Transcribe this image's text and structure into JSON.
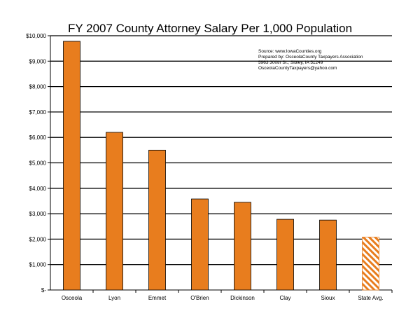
{
  "chart_data": {
    "type": "bar",
    "title": "FY 2007 County Attorney Salary Per 1,000 Population",
    "xlabel": "",
    "ylabel": "",
    "categories": [
      "Osceola",
      "Lyon",
      "Emmet",
      "O'Brien",
      "Dickinson",
      "Clay",
      "Sioux",
      "State Avg."
    ],
    "values": [
      9780,
      6200,
      5500,
      3580,
      3450,
      2780,
      2750,
      2080
    ],
    "ylim": [
      0,
      10000
    ],
    "yticks": [
      0,
      1000,
      2000,
      3000,
      4000,
      5000,
      6000,
      7000,
      8000,
      9000,
      10000
    ],
    "ytick_labels": [
      "$-",
      "$1,000",
      "$2,000",
      "$3,000",
      "$4,000",
      "$5,000",
      "$6,000",
      "$7,000",
      "$8,000",
      "$9,000",
      "$10,000"
    ],
    "grid": true,
    "colors": {
      "bar": "#E87D1E",
      "hatched_bar": "#E87D1E",
      "grid": "#000000"
    },
    "hatched_category": "State Avg.",
    "annotation": [
      "Source: www.IowaCounties.org",
      "Prepared by: OsceolaCounty Taxpayers Association",
      "5963 300th St., Sibley, IA 51249",
      "OsceolaCountyTaxpayers@yahoo.com"
    ]
  }
}
